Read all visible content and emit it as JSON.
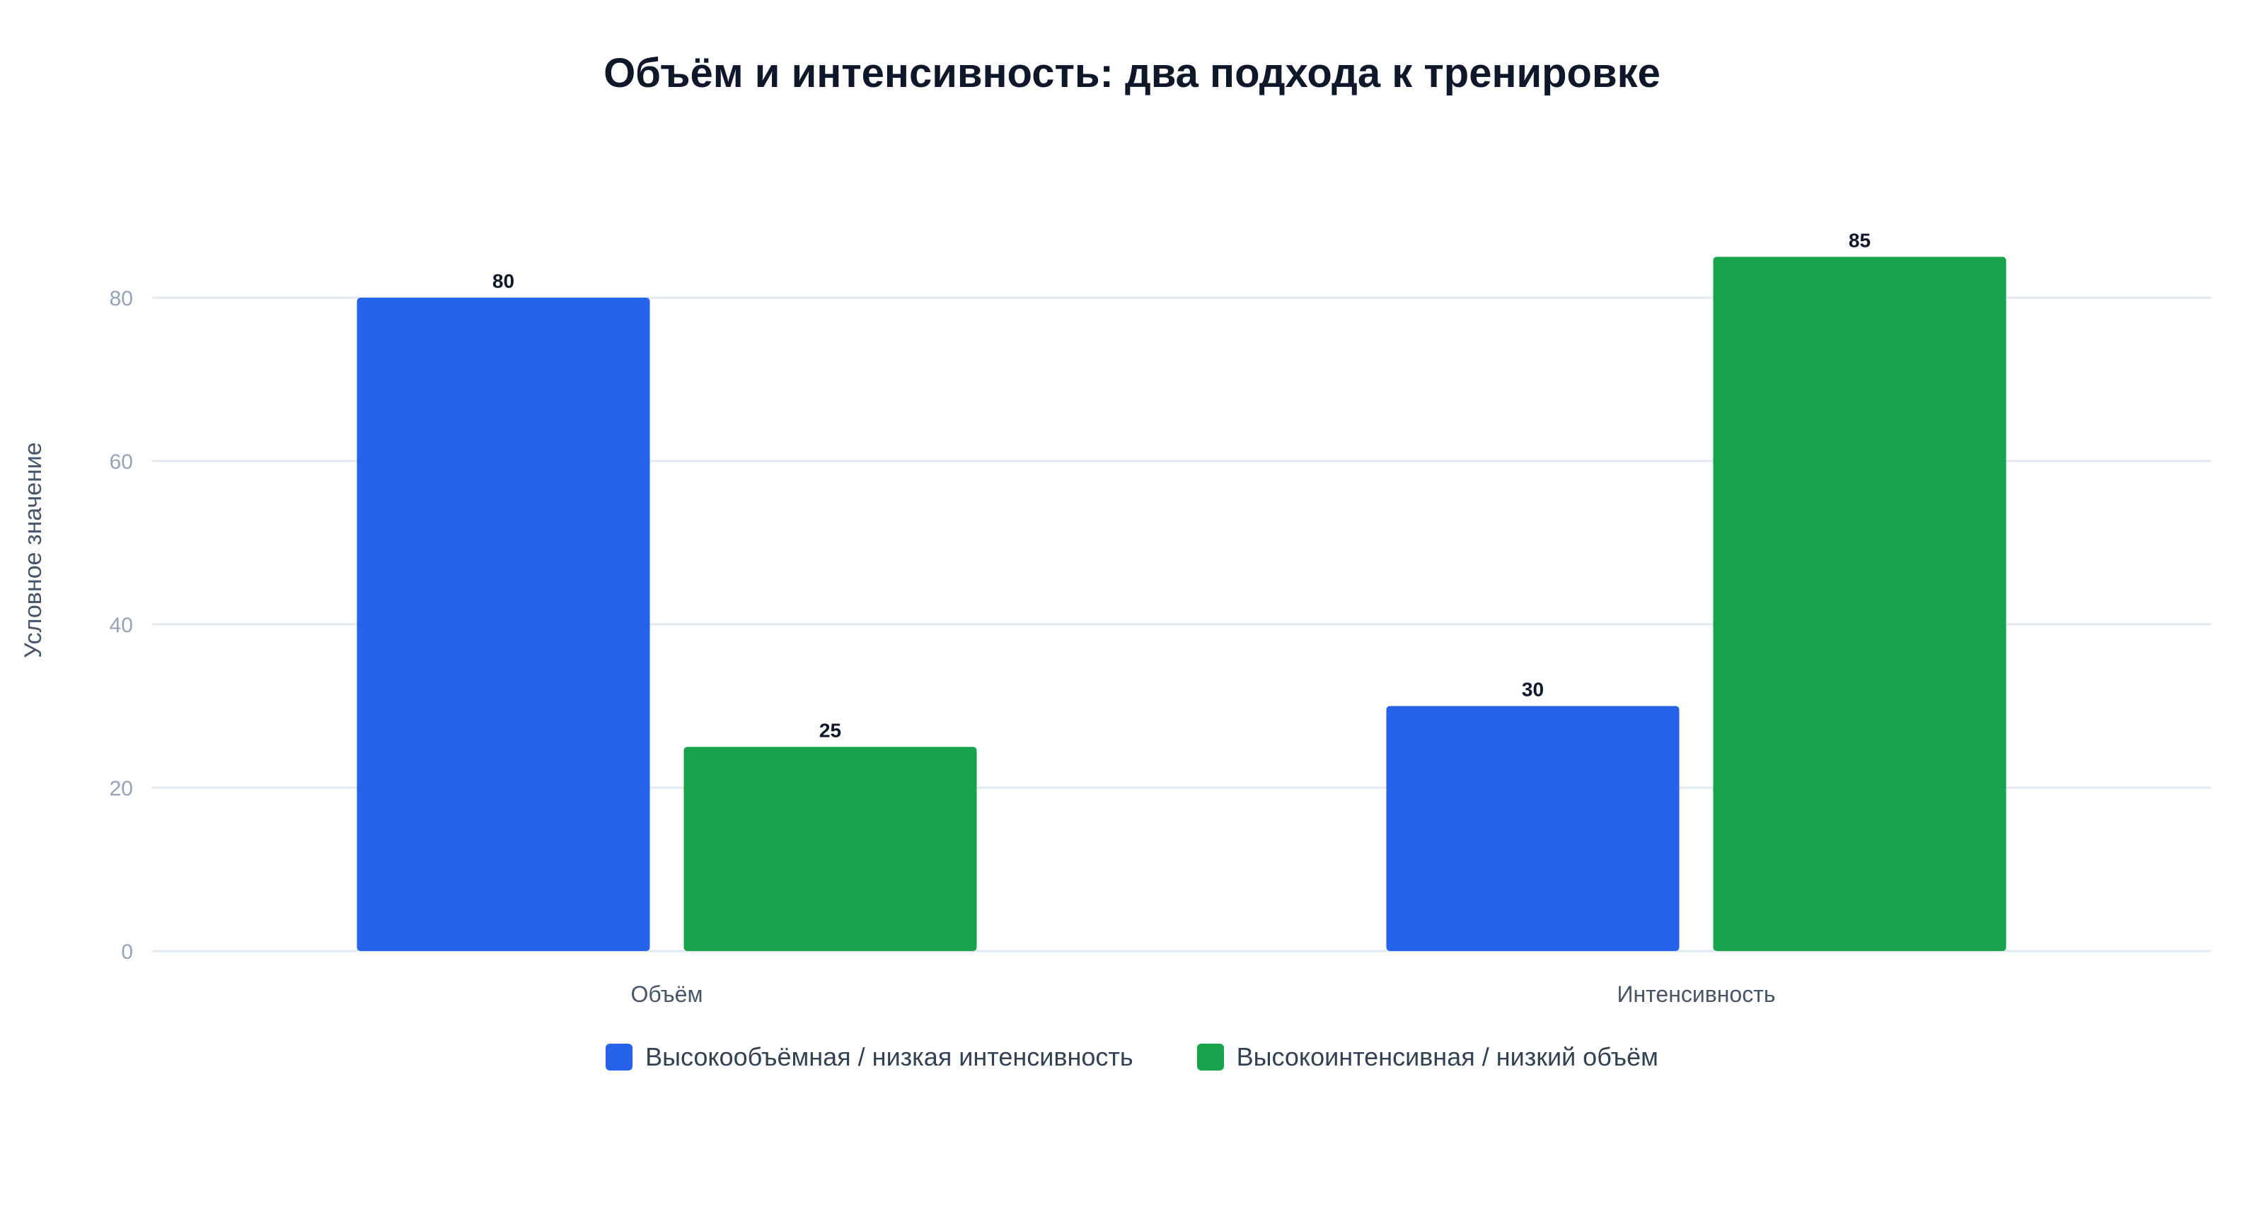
{
  "chart_data": {
    "type": "bar",
    "title": "Объём и интенсивность: два подхода к тренировке",
    "xlabel": "",
    "ylabel": "Условное значение",
    "categories": [
      "Объём",
      "Интенсивность"
    ],
    "series": [
      {
        "name": "Высокообъёмная / низкая интенсивность",
        "values": [
          80,
          30
        ],
        "color": "#2563eb"
      },
      {
        "name": "Высокоинтенсивная / низкий объём",
        "values": [
          25,
          85
        ],
        "color": "#16a34a"
      }
    ],
    "ylim": [
      0,
      90
    ],
    "yticks": [
      0,
      20,
      40,
      60,
      80
    ],
    "grid": true,
    "legend_position": "bottom"
  }
}
